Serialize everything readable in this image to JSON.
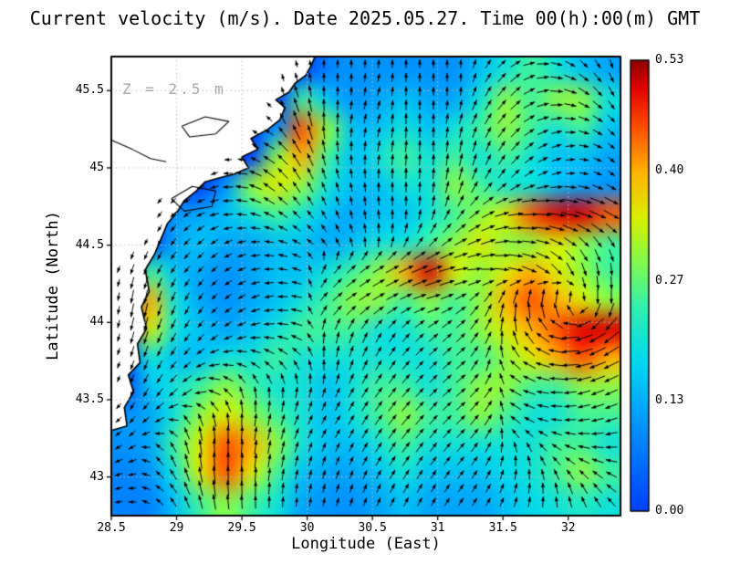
{
  "chart_data": {
    "type": "heatmap",
    "overlay": "quiver",
    "title": "Current velocity (m/s). Date 2025.05.27. Time 00(h):00(m) GMT",
    "annotation": "Z = 2.5 m",
    "xlabel": "Longitude (East)",
    "ylabel": "Latitude (North)",
    "xlim": [
      28.5,
      32.4
    ],
    "ylim": [
      42.75,
      45.72
    ],
    "grid_on": true,
    "xticks": {
      "values": [
        28.5,
        29,
        29.5,
        30,
        30.5,
        31,
        31.5,
        32
      ],
      "labels": [
        "28.5",
        "29",
        "29.5",
        "30",
        "30.5",
        "31",
        "31.5",
        "32"
      ]
    },
    "yticks": {
      "values": [
        43,
        43.5,
        44,
        44.5,
        45,
        45.5
      ],
      "labels": [
        "43",
        "43.5",
        "44",
        "44.5",
        "45",
        "45.5"
      ]
    },
    "colorbar": {
      "min": 0.0,
      "max": 0.53,
      "tick_values": [
        0.0,
        0.13,
        0.27,
        0.4,
        0.53
      ],
      "tick_labels": [
        "0.00",
        "0.13",
        "0.27",
        "0.40",
        "0.53"
      ],
      "position": "right"
    },
    "colormap": [
      [
        0.0,
        "#0040ff"
      ],
      [
        0.18,
        "#0090ff"
      ],
      [
        0.33,
        "#00d8f0"
      ],
      [
        0.45,
        "#30f0b0"
      ],
      [
        0.55,
        "#80fa50"
      ],
      [
        0.65,
        "#d8f000"
      ],
      [
        0.75,
        "#ffb400"
      ],
      [
        0.85,
        "#ff5000"
      ],
      [
        0.94,
        "#e00000"
      ],
      [
        1.0,
        "#8c0000"
      ]
    ],
    "grid_note": "speed_grid in m/s and dir_grid in degrees (0=east, CCW); rows ordered north(45.72) to south(42.75), cols west(28.5) to east(32.4); zeros in upper-left are land",
    "speed_grid": [
      [
        0,
        0,
        0,
        0,
        0,
        0,
        0,
        0,
        0.08,
        0.1,
        0.1,
        0.1,
        0.1,
        0.1,
        0.15,
        0.2,
        0.25,
        0.2,
        0.15,
        0.12
      ],
      [
        0,
        0,
        0,
        0,
        0,
        0,
        0,
        0.25,
        0.15,
        0.1,
        0.12,
        0.15,
        0.12,
        0.12,
        0.2,
        0.3,
        0.25,
        0.3,
        0.3,
        0.2
      ],
      [
        0,
        0,
        0,
        0,
        0,
        0,
        0.1,
        0.45,
        0.3,
        0.15,
        0.15,
        0.2,
        0.15,
        0.2,
        0.25,
        0.3,
        0.25,
        0.2,
        0.25,
        0.15
      ],
      [
        0,
        0,
        0,
        0,
        0,
        0,
        0.3,
        0.4,
        0.25,
        0.15,
        0.2,
        0.25,
        0.2,
        0.25,
        0.2,
        0.25,
        0.2,
        0.15,
        0.15,
        0.12
      ],
      [
        0,
        0,
        0,
        0,
        0.1,
        0.3,
        0.35,
        0.3,
        0.2,
        0.15,
        0.15,
        0.2,
        0.2,
        0.3,
        0.25,
        0.2,
        0.2,
        0.15,
        0.12,
        0.1
      ],
      [
        0,
        0,
        0.1,
        0.12,
        0.15,
        0.2,
        0.25,
        0.2,
        0.15,
        0.12,
        0.15,
        0.15,
        0.2,
        0.25,
        0.3,
        0.35,
        0.45,
        0.5,
        0.5,
        0.45
      ],
      [
        0,
        0,
        0.12,
        0.15,
        0.12,
        0.12,
        0.15,
        0.15,
        0.12,
        0.15,
        0.2,
        0.2,
        0.25,
        0.3,
        0.35,
        0.3,
        0.3,
        0.35,
        0.3,
        0.25
      ],
      [
        0,
        0.25,
        0.15,
        0.12,
        0.1,
        0.12,
        0.15,
        0.15,
        0.2,
        0.25,
        0.3,
        0.4,
        0.5,
        0.35,
        0.3,
        0.35,
        0.4,
        0.35,
        0.3,
        0.25
      ],
      [
        0,
        0.4,
        0.2,
        0.12,
        0.1,
        0.12,
        0.15,
        0.2,
        0.25,
        0.3,
        0.3,
        0.25,
        0.3,
        0.25,
        0.3,
        0.4,
        0.45,
        0.4,
        0.35,
        0.3
      ],
      [
        0,
        0.35,
        0.2,
        0.15,
        0.12,
        0.15,
        0.2,
        0.25,
        0.25,
        0.25,
        0.2,
        0.2,
        0.25,
        0.25,
        0.3,
        0.35,
        0.4,
        0.45,
        0.5,
        0.5
      ],
      [
        0,
        0.2,
        0.15,
        0.15,
        0.2,
        0.2,
        0.25,
        0.2,
        0.2,
        0.2,
        0.2,
        0.2,
        0.2,
        0.25,
        0.25,
        0.3,
        0.35,
        0.4,
        0.45,
        0.4
      ],
      [
        0,
        0.15,
        0.2,
        0.25,
        0.3,
        0.25,
        0.2,
        0.2,
        0.15,
        0.2,
        0.25,
        0.25,
        0.2,
        0.25,
        0.3,
        0.3,
        0.25,
        0.25,
        0.3,
        0.3
      ],
      [
        0.1,
        0.12,
        0.2,
        0.3,
        0.35,
        0.3,
        0.25,
        0.2,
        0.15,
        0.2,
        0.25,
        0.3,
        0.25,
        0.25,
        0.3,
        0.25,
        0.2,
        0.2,
        0.25,
        0.25
      ],
      [
        0.1,
        0.12,
        0.25,
        0.35,
        0.45,
        0.4,
        0.3,
        0.2,
        0.15,
        0.15,
        0.2,
        0.25,
        0.2,
        0.2,
        0.2,
        0.2,
        0.2,
        0.25,
        0.25,
        0.2
      ],
      [
        0.08,
        0.1,
        0.2,
        0.35,
        0.45,
        0.35,
        0.25,
        0.15,
        0.12,
        0.12,
        0.15,
        0.2,
        0.15,
        0.15,
        0.15,
        0.18,
        0.2,
        0.25,
        0.3,
        0.25
      ],
      [
        0.08,
        0.08,
        0.15,
        0.25,
        0.3,
        0.25,
        0.2,
        0.12,
        0.1,
        0.1,
        0.12,
        0.15,
        0.12,
        0.12,
        0.12,
        0.15,
        0.18,
        0.2,
        0.22,
        0.2
      ]
    ],
    "dir_grid": [
      [
        0,
        0,
        0,
        0,
        0,
        0,
        0,
        0,
        90,
        90,
        90,
        90,
        90,
        90,
        60,
        30,
        0,
        330,
        300,
        270
      ],
      [
        0,
        0,
        0,
        0,
        0,
        0,
        0,
        105,
        90,
        90,
        75,
        90,
        90,
        90,
        60,
        45,
        15,
        345,
        315,
        285
      ],
      [
        0,
        0,
        0,
        0,
        0,
        0,
        135,
        110,
        90,
        80,
        75,
        90,
        90,
        75,
        60,
        45,
        20,
        0,
        330,
        300
      ],
      [
        0,
        0,
        0,
        0,
        0,
        0,
        150,
        120,
        100,
        90,
        80,
        85,
        90,
        80,
        70,
        50,
        30,
        10,
        340,
        310
      ],
      [
        0,
        0,
        0,
        0,
        200,
        170,
        140,
        120,
        110,
        100,
        90,
        90,
        85,
        75,
        60,
        45,
        25,
        5,
        340,
        315
      ],
      [
        0,
        0,
        230,
        210,
        190,
        170,
        150,
        130,
        115,
        100,
        95,
        90,
        80,
        60,
        30,
        10,
        0,
        350,
        340,
        330
      ],
      [
        0,
        0,
        240,
        225,
        210,
        190,
        170,
        150,
        130,
        110,
        90,
        70,
        50,
        30,
        20,
        0,
        350,
        330,
        310,
        300
      ],
      [
        0,
        250,
        240,
        230,
        220,
        200,
        180,
        160,
        60,
        40,
        30,
        25,
        20,
        10,
        0,
        350,
        330,
        300,
        280,
        270
      ],
      [
        0,
        260,
        250,
        240,
        225,
        210,
        190,
        170,
        45,
        35,
        30,
        25,
        15,
        30,
        60,
        80,
        90,
        90,
        270,
        270
      ],
      [
        0,
        255,
        245,
        235,
        220,
        200,
        180,
        160,
        80,
        70,
        60,
        50,
        40,
        45,
        60,
        100,
        135,
        180,
        210,
        225
      ],
      [
        0,
        250,
        240,
        220,
        190,
        160,
        140,
        120,
        90,
        70,
        60,
        50,
        45,
        40,
        70,
        135,
        160,
        180,
        200,
        210
      ],
      [
        0,
        245,
        230,
        210,
        150,
        100,
        90,
        80,
        70,
        60,
        55,
        50,
        45,
        40,
        50,
        150,
        170,
        185,
        200,
        205
      ],
      [
        220,
        230,
        200,
        110,
        95,
        85,
        75,
        65,
        60,
        60,
        55,
        50,
        50,
        45,
        55,
        140,
        160,
        180,
        190,
        200
      ],
      [
        210,
        200,
        120,
        100,
        90,
        85,
        80,
        75,
        70,
        65,
        60,
        55,
        55,
        50,
        60,
        90,
        120,
        150,
        170,
        180
      ],
      [
        200,
        180,
        140,
        110,
        95,
        90,
        85,
        80,
        75,
        70,
        65,
        60,
        60,
        55,
        60,
        75,
        90,
        110,
        130,
        150
      ],
      [
        190,
        170,
        130,
        110,
        100,
        95,
        90,
        85,
        80,
        75,
        70,
        65,
        60,
        60,
        60,
        70,
        80,
        95,
        110,
        130
      ]
    ],
    "coast_polygon": [
      [
        28.5,
        43.3
      ],
      [
        28.62,
        43.33
      ],
      [
        28.6,
        43.45
      ],
      [
        28.67,
        43.55
      ],
      [
        28.63,
        43.66
      ],
      [
        28.72,
        43.74
      ],
      [
        28.7,
        43.86
      ],
      [
        28.77,
        43.96
      ],
      [
        28.73,
        44.1
      ],
      [
        28.79,
        44.2
      ],
      [
        28.76,
        44.34
      ],
      [
        28.83,
        44.44
      ],
      [
        28.88,
        44.54
      ],
      [
        28.93,
        44.64
      ],
      [
        29.0,
        44.71
      ],
      [
        29.06,
        44.79
      ],
      [
        29.15,
        44.85
      ],
      [
        29.22,
        44.91
      ],
      [
        29.35,
        44.94
      ],
      [
        29.44,
        44.96
      ],
      [
        29.55,
        45.0
      ],
      [
        29.5,
        45.07
      ],
      [
        29.62,
        45.12
      ],
      [
        29.57,
        45.19
      ],
      [
        29.7,
        45.25
      ],
      [
        29.79,
        45.31
      ],
      [
        29.83,
        45.39
      ],
      [
        29.76,
        45.44
      ],
      [
        29.86,
        45.49
      ],
      [
        29.91,
        45.55
      ],
      [
        29.99,
        45.6
      ],
      [
        30.03,
        45.66
      ],
      [
        30.06,
        45.72
      ],
      [
        28.5,
        45.72
      ]
    ],
    "lakes": [
      [
        [
          29.04,
          45.27
        ],
        [
          29.22,
          45.33
        ],
        [
          29.4,
          45.3
        ],
        [
          29.3,
          45.22
        ],
        [
          29.1,
          45.2
        ],
        [
          29.04,
          45.27
        ]
      ],
      [
        [
          28.96,
          44.8
        ],
        [
          29.12,
          44.88
        ],
        [
          29.3,
          44.85
        ],
        [
          29.27,
          44.75
        ],
        [
          29.06,
          44.72
        ],
        [
          28.96,
          44.8
        ]
      ]
    ],
    "rivers": [
      [
        [
          28.5,
          45.18
        ],
        [
          28.66,
          45.12
        ],
        [
          28.8,
          45.06
        ],
        [
          28.92,
          45.04
        ]
      ]
    ],
    "colors": {
      "arrow": "#000000",
      "land": "#ffffff",
      "coastline": "#000000",
      "gridline": "#c0c0c0",
      "annotation_gray": "#a8a8a8"
    }
  }
}
